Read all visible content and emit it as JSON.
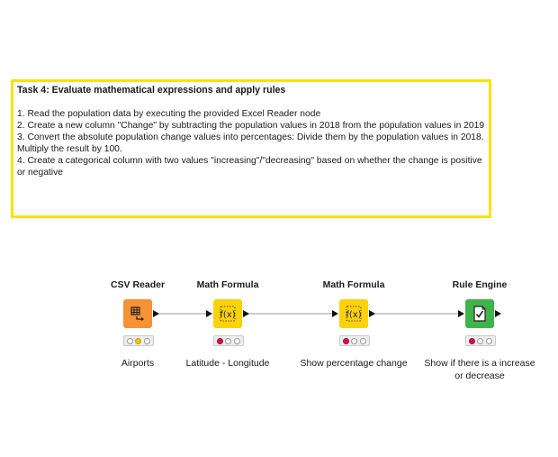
{
  "annotation": {
    "title": "Task 4: Evaluate mathematical expressions and apply rules",
    "lines": [
      "1. Read the population data by executing the provided Excel Reader node",
      "2. Create a new column \"Change\" by subtracting the population values in 2018 from the population values in 2019",
      "3. Convert the absolute population change values into percentages: Divide them by the population values in 2018. Multiply the result by 100.",
      "4. Create a categorical column with two values \"increasing\"/\"decreasing\" based on whether the change is positive or negative"
    ],
    "border_color": "#ffe000"
  },
  "nodes": [
    {
      "title": "CSV Reader",
      "label": "Airports",
      "icon": "table-arrow-icon",
      "color": "#f69235",
      "status": [
        "off",
        "yellow",
        "off"
      ]
    },
    {
      "title": "Math Formula",
      "label": "Latitude - Longitude",
      "icon": "fx-icon",
      "color": "#fdd20a",
      "status": [
        "red",
        "off",
        "off"
      ]
    },
    {
      "title": "Math Formula",
      "label": "Show percentage change",
      "icon": "fx-icon",
      "color": "#fdd20a",
      "status": [
        "red",
        "off",
        "off"
      ]
    },
    {
      "title": "Rule Engine",
      "label": "Show if there is a increase or decrease",
      "icon": "rule-document-icon",
      "color": "#3fb44a",
      "status": [
        "red",
        "off",
        "off"
      ]
    }
  ],
  "status_colors": {
    "red": "#d4144a",
    "yellow": "#f4c300",
    "off": "#ffffff"
  }
}
